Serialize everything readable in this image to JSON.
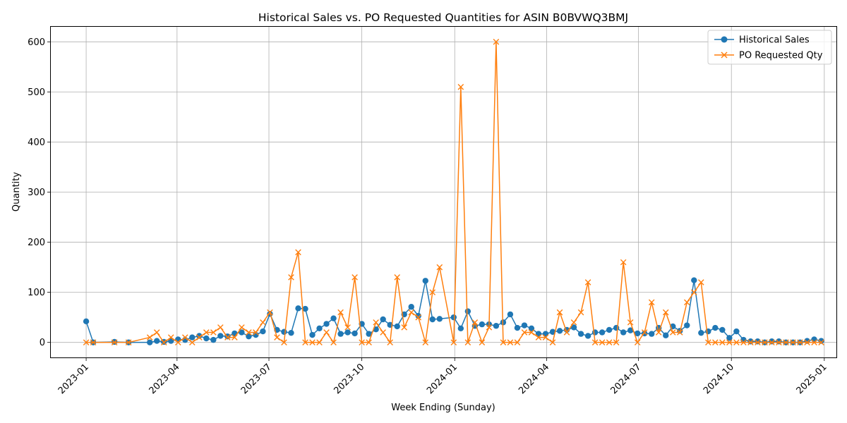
{
  "chart_data": {
    "type": "line",
    "title": "Historical Sales vs. PO Requested Quantities for ASIN B0BVWQ3BMJ",
    "xlabel": "Week Ending (Sunday)",
    "ylabel": "Quantity",
    "xlim": [
      "2022-11-27",
      "2025-01-13"
    ],
    "ylim": [
      -30,
      630
    ],
    "x_ticks": [
      "2023-01",
      "2023-04",
      "2023-07",
      "2023-10",
      "2024-01",
      "2024-04",
      "2024-07",
      "2024-10",
      "2025-01"
    ],
    "y_ticks": [
      0,
      100,
      200,
      300,
      400,
      500,
      600
    ],
    "grid": true,
    "legend_position": "top-right",
    "colors": {
      "sales": "#1f77b4",
      "po": "#ff7f0e",
      "grid": "#b0b0b0"
    },
    "series": [
      {
        "name": "Historical Sales",
        "marker": "circle",
        "points": [
          [
            "2023-01-01",
            42
          ],
          [
            "2023-01-08",
            0
          ],
          [
            "2023-01-29",
            1
          ],
          [
            "2023-02-12",
            0
          ],
          [
            "2023-03-05",
            0
          ],
          [
            "2023-03-12",
            3
          ],
          [
            "2023-03-19",
            1
          ],
          [
            "2023-03-26",
            3
          ],
          [
            "2023-04-02",
            6
          ],
          [
            "2023-04-09",
            5
          ],
          [
            "2023-04-16",
            10
          ],
          [
            "2023-04-23",
            13
          ],
          [
            "2023-04-30",
            8
          ],
          [
            "2023-05-07",
            5
          ],
          [
            "2023-05-14",
            13
          ],
          [
            "2023-05-21",
            12
          ],
          [
            "2023-05-28",
            18
          ],
          [
            "2023-06-04",
            20
          ],
          [
            "2023-06-11",
            12
          ],
          [
            "2023-06-18",
            15
          ],
          [
            "2023-06-25",
            22
          ],
          [
            "2023-07-02",
            57
          ],
          [
            "2023-07-09",
            25
          ],
          [
            "2023-07-16",
            21
          ],
          [
            "2023-07-23",
            19
          ],
          [
            "2023-07-30",
            68
          ],
          [
            "2023-08-06",
            67
          ],
          [
            "2023-08-13",
            15
          ],
          [
            "2023-08-20",
            28
          ],
          [
            "2023-08-27",
            37
          ],
          [
            "2023-09-03",
            48
          ],
          [
            "2023-09-10",
            17
          ],
          [
            "2023-09-17",
            20
          ],
          [
            "2023-09-24",
            18
          ],
          [
            "2023-10-01",
            37
          ],
          [
            "2023-10-08",
            17
          ],
          [
            "2023-10-15",
            26
          ],
          [
            "2023-10-22",
            46
          ],
          [
            "2023-10-29",
            35
          ],
          [
            "2023-11-05",
            32
          ],
          [
            "2023-11-12",
            56
          ],
          [
            "2023-11-19",
            71
          ],
          [
            "2023-11-26",
            53
          ],
          [
            "2023-12-03",
            123
          ],
          [
            "2023-12-10",
            46
          ],
          [
            "2023-12-17",
            47
          ],
          [
            "2023-12-31",
            50
          ],
          [
            "2024-01-07",
            28
          ],
          [
            "2024-01-14",
            62
          ],
          [
            "2024-01-21",
            33
          ],
          [
            "2024-01-28",
            36
          ],
          [
            "2024-02-04",
            36
          ],
          [
            "2024-02-11",
            33
          ],
          [
            "2024-02-18",
            40
          ],
          [
            "2024-02-25",
            56
          ],
          [
            "2024-03-03",
            29
          ],
          [
            "2024-03-10",
            34
          ],
          [
            "2024-03-17",
            28
          ],
          [
            "2024-03-24",
            17
          ],
          [
            "2024-03-31",
            17
          ],
          [
            "2024-04-07",
            21
          ],
          [
            "2024-04-14",
            23
          ],
          [
            "2024-04-21",
            25
          ],
          [
            "2024-04-28",
            30
          ],
          [
            "2024-05-05",
            17
          ],
          [
            "2024-05-12",
            13
          ],
          [
            "2024-05-19",
            20
          ],
          [
            "2024-05-26",
            20
          ],
          [
            "2024-06-02",
            25
          ],
          [
            "2024-06-09",
            29
          ],
          [
            "2024-06-16",
            20
          ],
          [
            "2024-06-23",
            24
          ],
          [
            "2024-06-30",
            18
          ],
          [
            "2024-07-07",
            18
          ],
          [
            "2024-07-14",
            17
          ],
          [
            "2024-07-21",
            29
          ],
          [
            "2024-07-28",
            14
          ],
          [
            "2024-08-04",
            32
          ],
          [
            "2024-08-11",
            23
          ],
          [
            "2024-08-18",
            34
          ],
          [
            "2024-08-25",
            124
          ],
          [
            "2024-09-01",
            19
          ],
          [
            "2024-09-08",
            22
          ],
          [
            "2024-09-15",
            29
          ],
          [
            "2024-09-22",
            25
          ],
          [
            "2024-09-29",
            9
          ],
          [
            "2024-10-06",
            22
          ],
          [
            "2024-10-13",
            5
          ],
          [
            "2024-10-20",
            2
          ],
          [
            "2024-10-27",
            2
          ],
          [
            "2024-11-03",
            0
          ],
          [
            "2024-11-10",
            2
          ],
          [
            "2024-11-17",
            2
          ],
          [
            "2024-11-24",
            0
          ],
          [
            "2024-12-01",
            0
          ],
          [
            "2024-12-08",
            0
          ],
          [
            "2024-12-15",
            3
          ],
          [
            "2024-12-22",
            6
          ],
          [
            "2024-12-29",
            3
          ]
        ]
      },
      {
        "name": "PO Requested Qty",
        "marker": "x",
        "points": [
          [
            "2023-01-01",
            0
          ],
          [
            "2023-01-08",
            0
          ],
          [
            "2023-01-29",
            0
          ],
          [
            "2023-02-12",
            0
          ],
          [
            "2023-03-05",
            10
          ],
          [
            "2023-03-12",
            20
          ],
          [
            "2023-03-19",
            0
          ],
          [
            "2023-03-26",
            10
          ],
          [
            "2023-04-02",
            0
          ],
          [
            "2023-04-09",
            10
          ],
          [
            "2023-04-16",
            0
          ],
          [
            "2023-04-23",
            10
          ],
          [
            "2023-04-30",
            20
          ],
          [
            "2023-05-07",
            20
          ],
          [
            "2023-05-14",
            30
          ],
          [
            "2023-05-21",
            10
          ],
          [
            "2023-05-28",
            10
          ],
          [
            "2023-06-04",
            30
          ],
          [
            "2023-06-11",
            20
          ],
          [
            "2023-06-18",
            20
          ],
          [
            "2023-06-25",
            40
          ],
          [
            "2023-07-02",
            60
          ],
          [
            "2023-07-09",
            10
          ],
          [
            "2023-07-16",
            0
          ],
          [
            "2023-07-23",
            130
          ],
          [
            "2023-07-30",
            180
          ],
          [
            "2023-08-06",
            0
          ],
          [
            "2023-08-13",
            0
          ],
          [
            "2023-08-20",
            0
          ],
          [
            "2023-08-27",
            20
          ],
          [
            "2023-09-03",
            0
          ],
          [
            "2023-09-10",
            60
          ],
          [
            "2023-09-17",
            30
          ],
          [
            "2023-09-24",
            130
          ],
          [
            "2023-10-01",
            0
          ],
          [
            "2023-10-08",
            0
          ],
          [
            "2023-10-15",
            40
          ],
          [
            "2023-10-22",
            20
          ],
          [
            "2023-10-29",
            0
          ],
          [
            "2023-11-05",
            130
          ],
          [
            "2023-11-12",
            30
          ],
          [
            "2023-11-19",
            60
          ],
          [
            "2023-11-26",
            50
          ],
          [
            "2023-12-03",
            0
          ],
          [
            "2023-12-10",
            100
          ],
          [
            "2023-12-17",
            150
          ],
          [
            "2023-12-31",
            0
          ],
          [
            "2024-01-07",
            510
          ],
          [
            "2024-01-14",
            0
          ],
          [
            "2024-01-21",
            40
          ],
          [
            "2024-01-28",
            0
          ],
          [
            "2024-02-04",
            30
          ],
          [
            "2024-02-11",
            600
          ],
          [
            "2024-02-18",
            0
          ],
          [
            "2024-02-25",
            0
          ],
          [
            "2024-03-03",
            0
          ],
          [
            "2024-03-10",
            20
          ],
          [
            "2024-03-17",
            20
          ],
          [
            "2024-03-24",
            10
          ],
          [
            "2024-03-31",
            10
          ],
          [
            "2024-04-07",
            0
          ],
          [
            "2024-04-14",
            60
          ],
          [
            "2024-04-21",
            20
          ],
          [
            "2024-04-28",
            40
          ],
          [
            "2024-05-05",
            60
          ],
          [
            "2024-05-12",
            120
          ],
          [
            "2024-05-19",
            0
          ],
          [
            "2024-05-26",
            0
          ],
          [
            "2024-06-02",
            0
          ],
          [
            "2024-06-09",
            0
          ],
          [
            "2024-06-16",
            160
          ],
          [
            "2024-06-23",
            40
          ],
          [
            "2024-06-30",
            0
          ],
          [
            "2024-07-07",
            20
          ],
          [
            "2024-07-14",
            80
          ],
          [
            "2024-07-21",
            20
          ],
          [
            "2024-07-28",
            60
          ],
          [
            "2024-08-04",
            20
          ],
          [
            "2024-08-11",
            20
          ],
          [
            "2024-08-18",
            80
          ],
          [
            "2024-08-25",
            100
          ],
          [
            "2024-09-01",
            120
          ],
          [
            "2024-09-08",
            0
          ],
          [
            "2024-09-15",
            0
          ],
          [
            "2024-09-22",
            0
          ],
          [
            "2024-09-29",
            0
          ],
          [
            "2024-10-06",
            0
          ],
          [
            "2024-10-13",
            0
          ],
          [
            "2024-10-20",
            0
          ],
          [
            "2024-10-27",
            0
          ],
          [
            "2024-11-03",
            0
          ],
          [
            "2024-11-10",
            0
          ],
          [
            "2024-11-17",
            0
          ],
          [
            "2024-11-24",
            0
          ],
          [
            "2024-12-01",
            0
          ],
          [
            "2024-12-08",
            0
          ],
          [
            "2024-12-15",
            0
          ],
          [
            "2024-12-22",
            0
          ],
          [
            "2024-12-29",
            0
          ]
        ]
      }
    ]
  }
}
